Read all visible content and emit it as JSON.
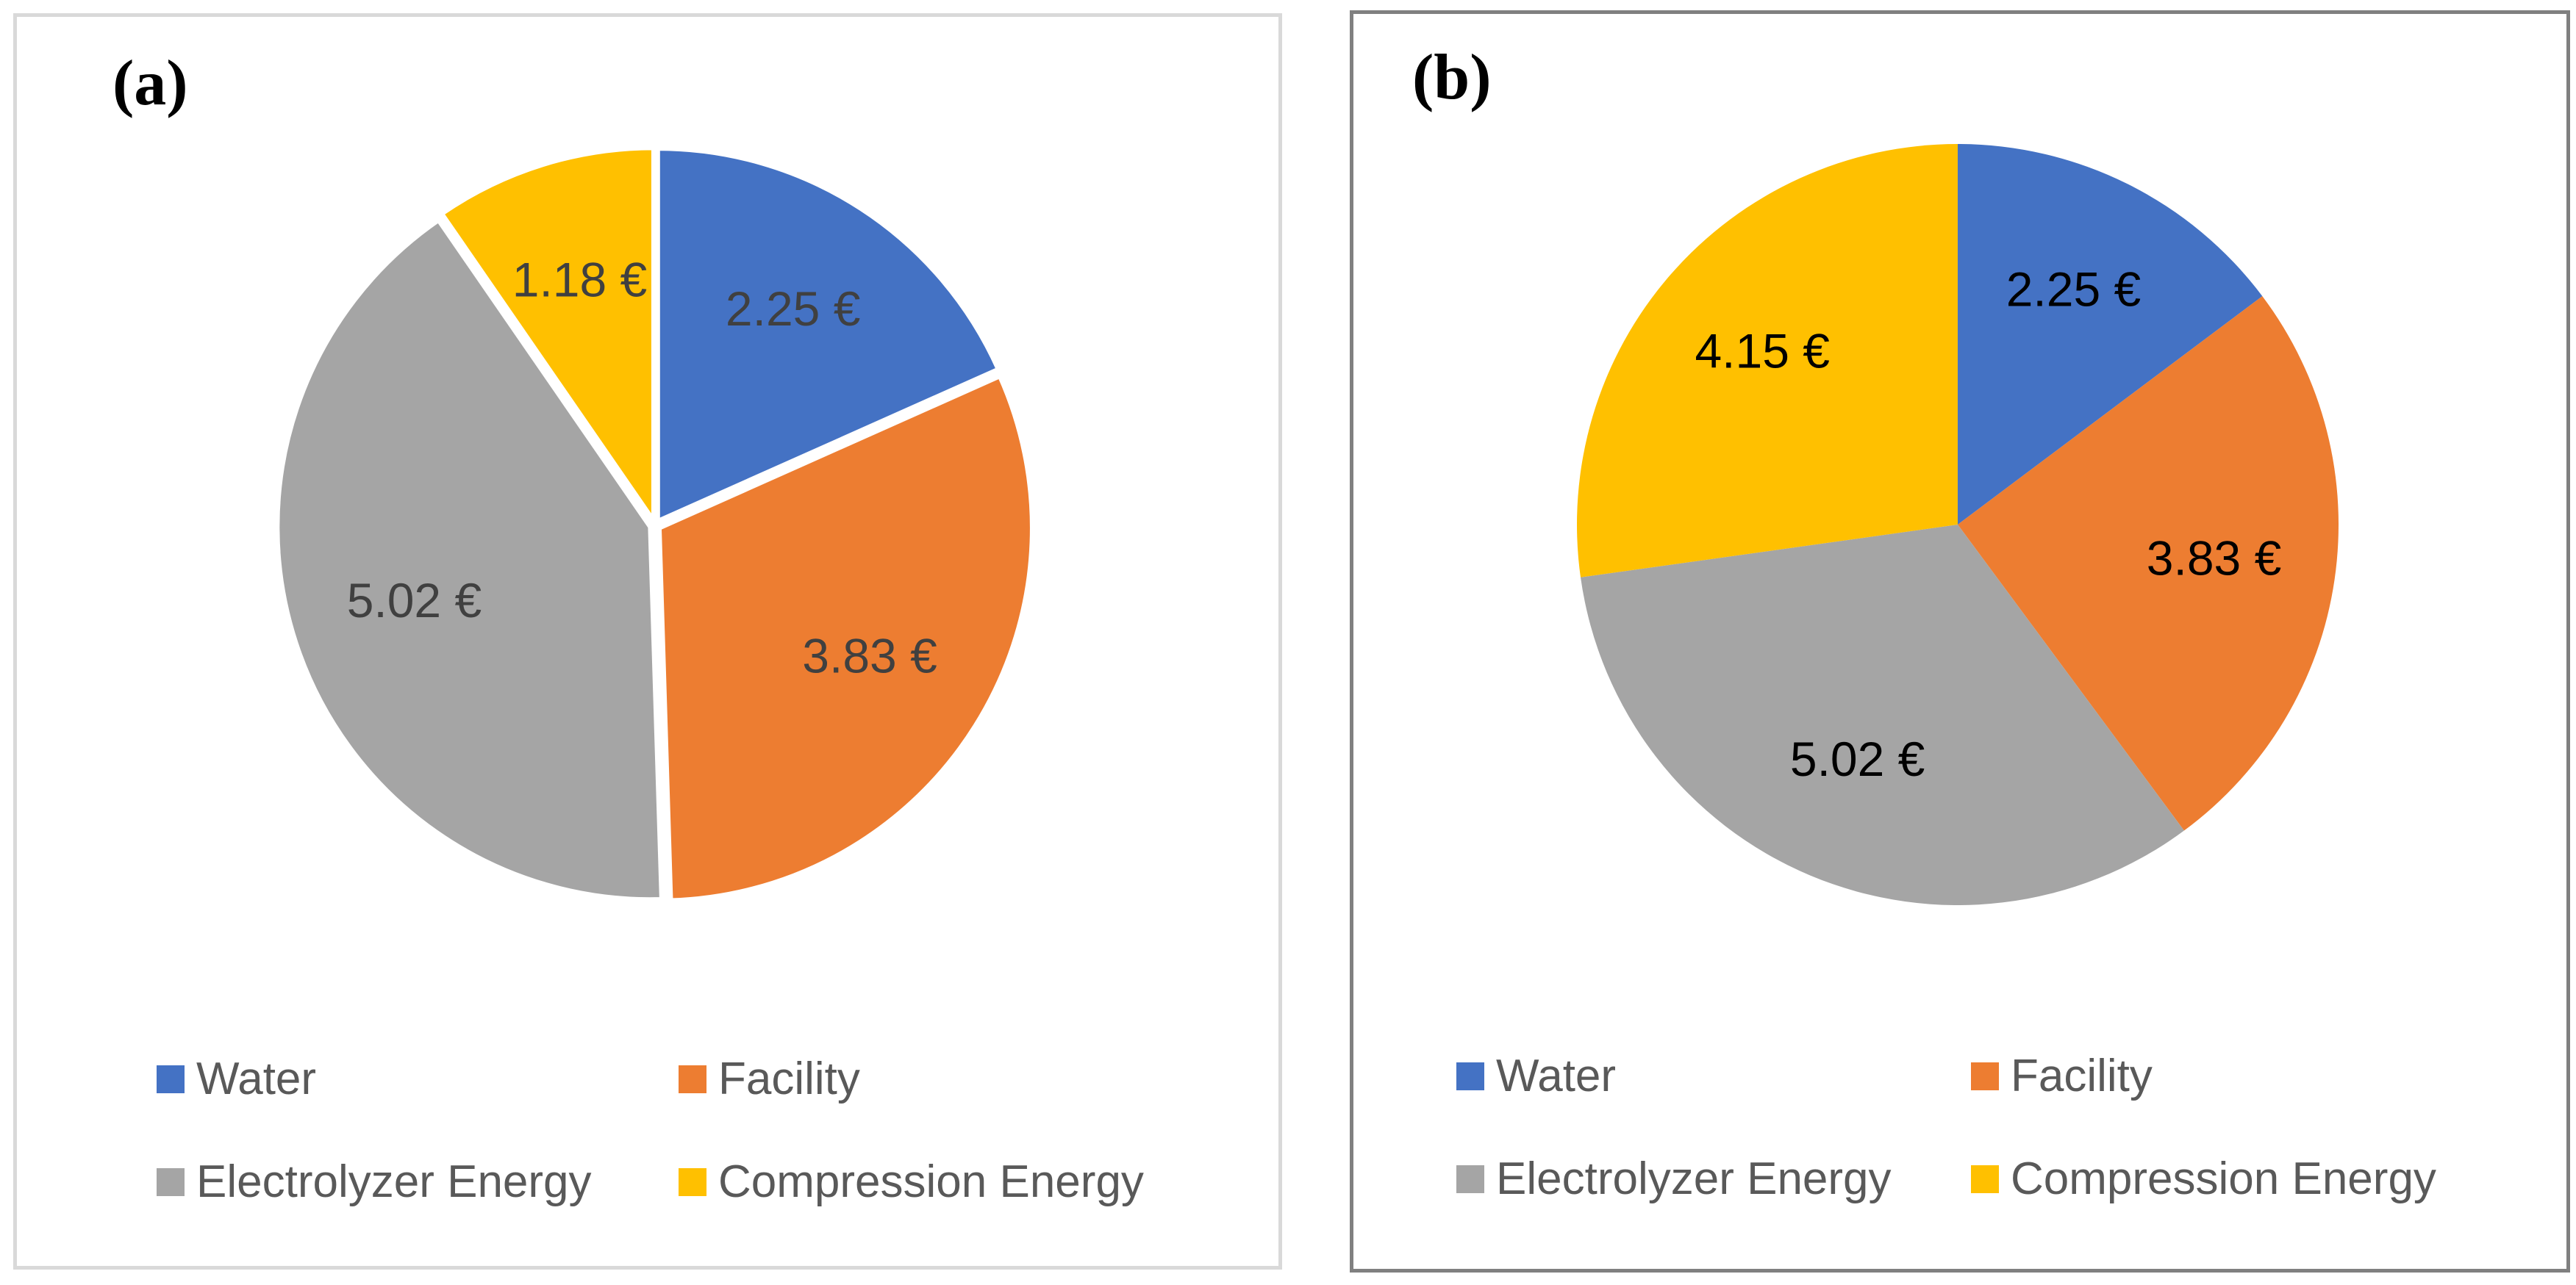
{
  "chart_data": [
    {
      "type": "pie",
      "panel_label": "(a)",
      "title": "",
      "currency": "€",
      "categories": [
        "Water",
        "Facility",
        "Electrolyzer Energy",
        "Compression Energy"
      ],
      "values": [
        2.25,
        3.83,
        5.02,
        1.18
      ],
      "data_labels": [
        "2.25 €",
        "3.83 €",
        "5.02 €",
        "1.18 €"
      ],
      "colors": [
        "#4472c4",
        "#ed7d31",
        "#a5a5a5",
        "#ffc000"
      ],
      "label_color": "#404040",
      "exploded": true,
      "legend_position": "bottom"
    },
    {
      "type": "pie",
      "panel_label": "(b)",
      "title": "",
      "currency": "€",
      "categories": [
        "Water",
        "Facility",
        "Electrolyzer Energy",
        "Compression Energy"
      ],
      "values": [
        2.25,
        3.83,
        5.02,
        4.15
      ],
      "data_labels": [
        "2.25 €",
        "3.83 €",
        "5.02 €",
        "4.15 €"
      ],
      "colors": [
        "#4472c4",
        "#ed7d31",
        "#a5a5a5",
        "#ffc000"
      ],
      "label_color": "#000000",
      "exploded": false,
      "legend_position": "bottom"
    }
  ]
}
